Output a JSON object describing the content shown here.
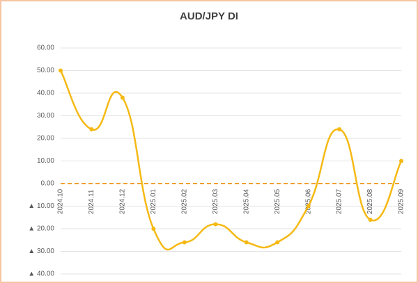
{
  "chart_data": {
    "type": "line",
    "title": "AUD/JPY  DI",
    "categories": [
      "2024.10",
      "2024.11",
      "2024.12",
      "2025.01",
      "2025.02",
      "2025.03",
      "2025.04",
      "2025.05",
      "2025.06",
      "2025.07",
      "2025.08",
      "2025.09"
    ],
    "series": [
      {
        "name": "DI",
        "color": "#f5b914",
        "values": [
          50,
          24,
          38,
          -20,
          -26,
          -18,
          -26,
          -26,
          -10,
          24,
          -16,
          10
        ]
      }
    ],
    "ylim": [
      -40,
      60
    ],
    "yticks": [
      {
        "value": 60,
        "label": "60.00"
      },
      {
        "value": 50,
        "label": "50.00"
      },
      {
        "value": 40,
        "label": "40.00"
      },
      {
        "value": 30,
        "label": "30.00"
      },
      {
        "value": 20,
        "label": "20.00"
      },
      {
        "value": 10,
        "label": "10.00"
      },
      {
        "value": 0,
        "label": "0.00"
      },
      {
        "value": -10,
        "label": "▲ 10.00"
      },
      {
        "value": -20,
        "label": "▲ 20.00"
      },
      {
        "value": -30,
        "label": "▲ 30.00"
      },
      {
        "value": -40,
        "label": "▲ 40.00"
      }
    ],
    "grid": true,
    "zero_line_color": "#f0a030",
    "negative_label_color": "#c00000"
  }
}
